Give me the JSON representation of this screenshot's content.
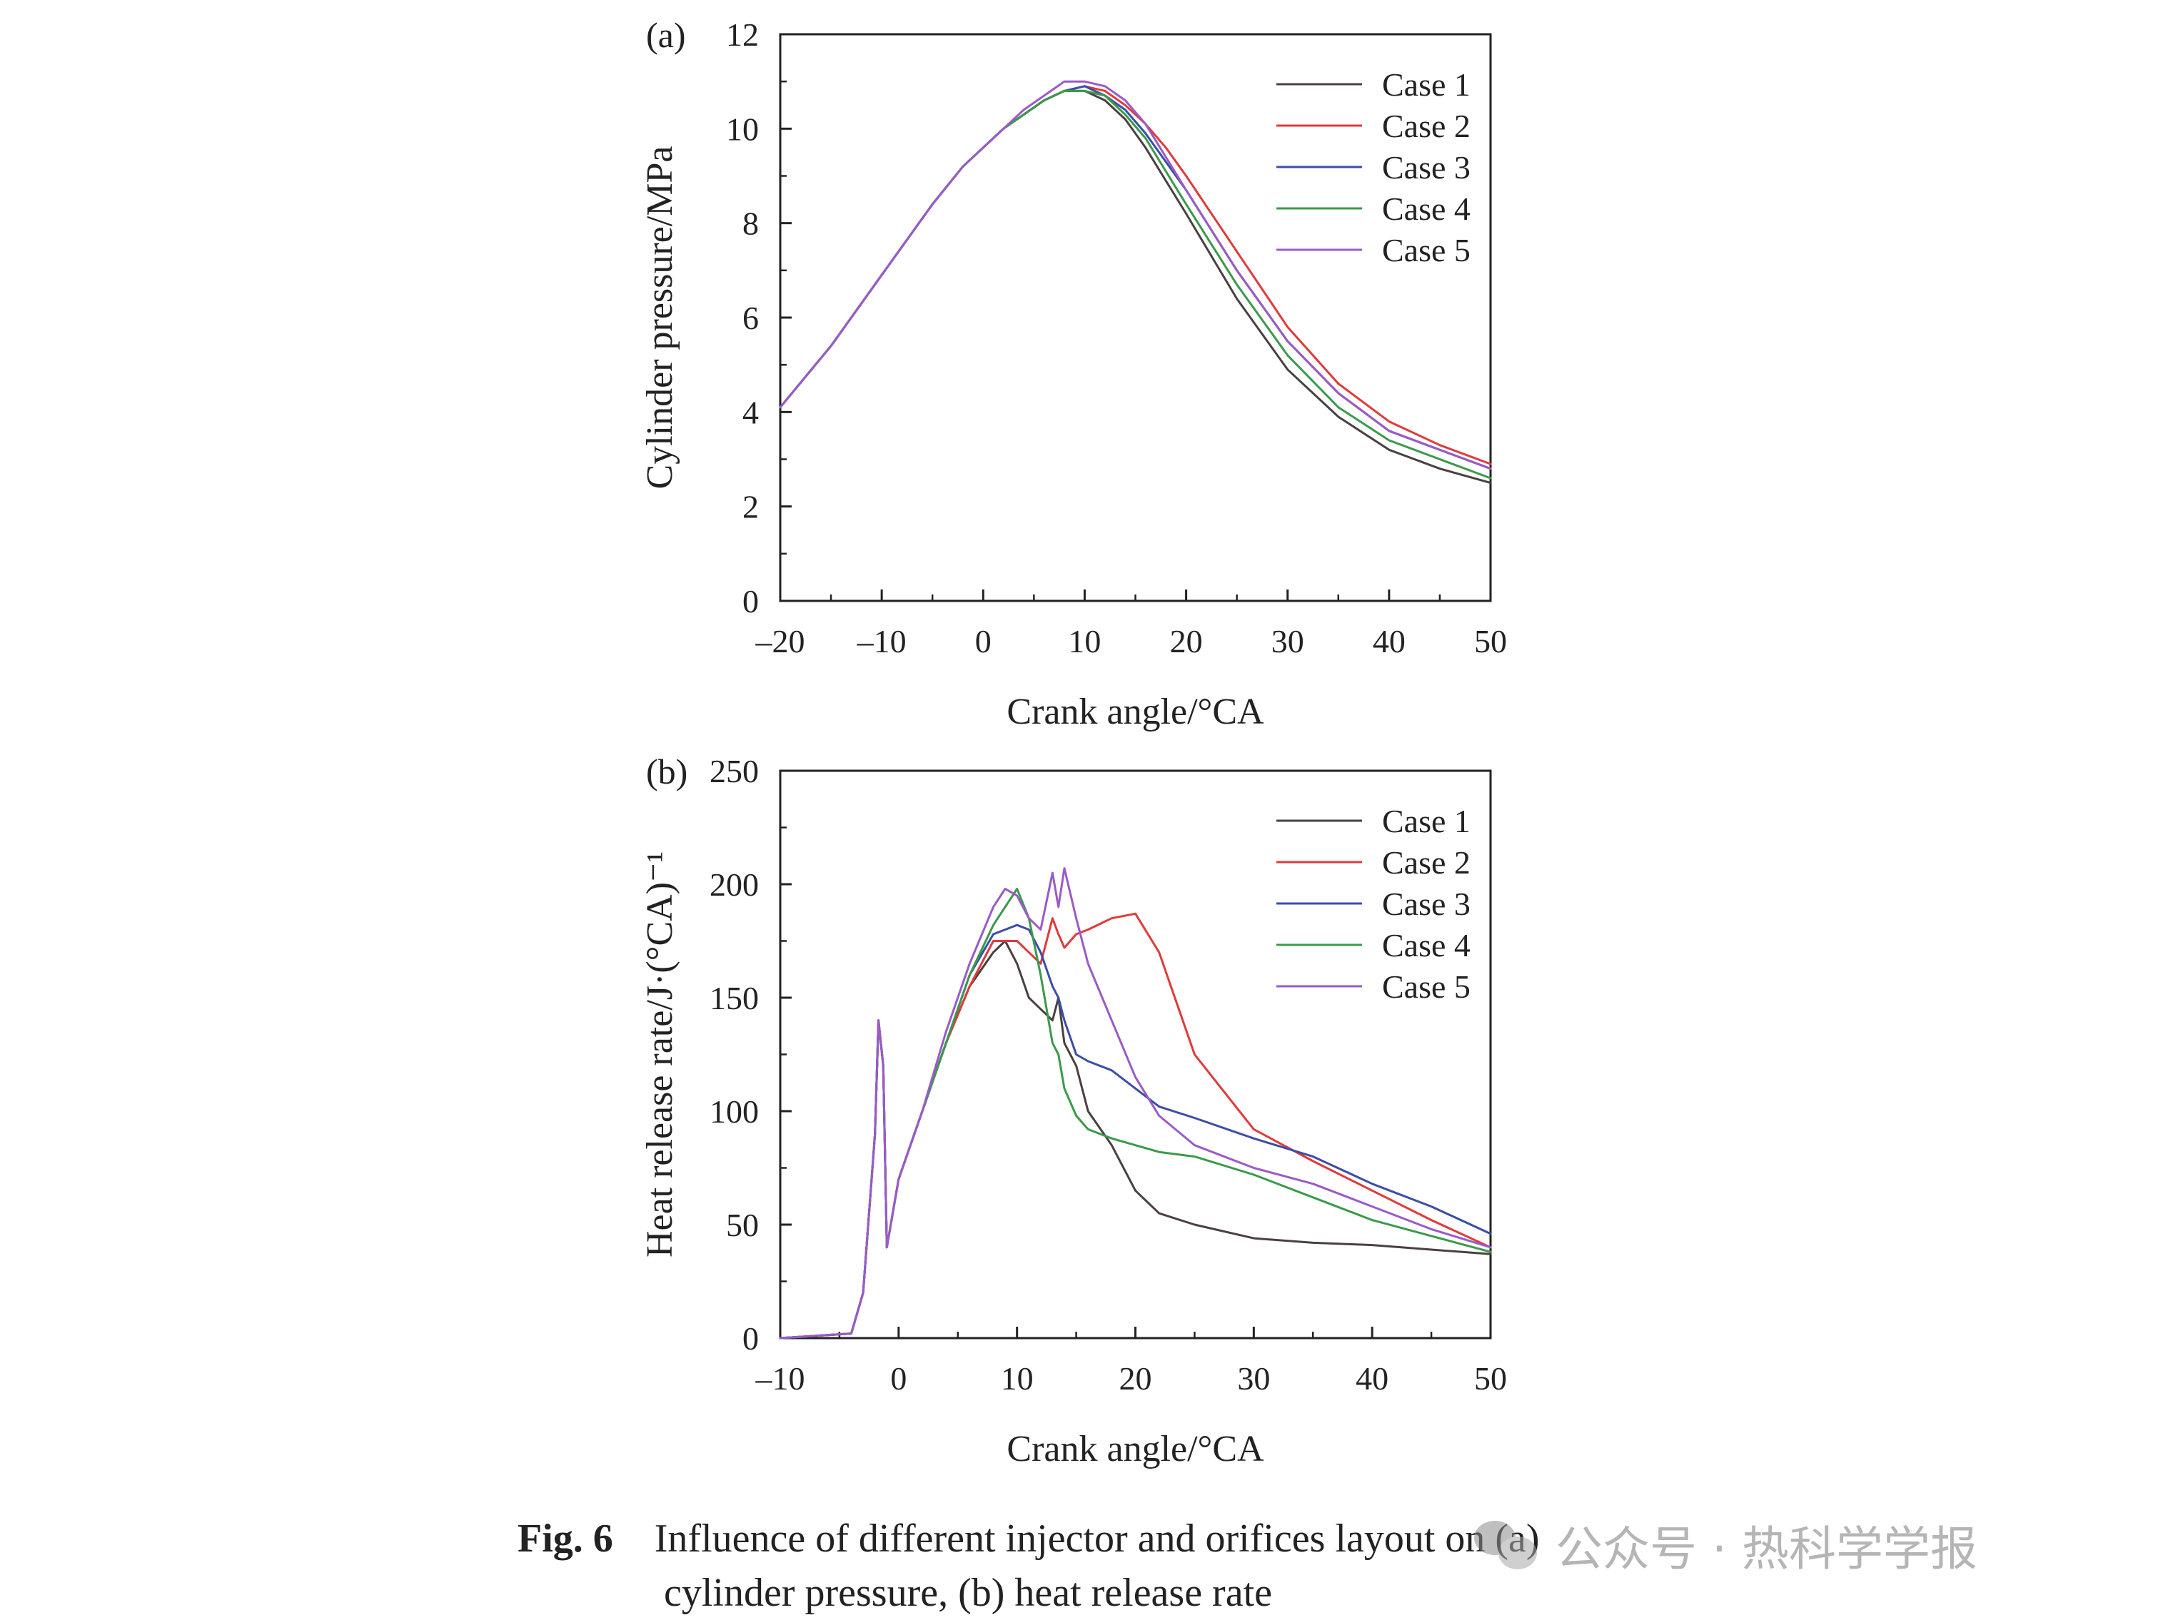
{
  "charts": [
    {
      "panel_label": "(a)",
      "xlabel": "Crank angle/°CA",
      "ylabel": "Cylinder pressure/MPa",
      "xlim": [
        -20,
        50
      ],
      "ylim": [
        0,
        12
      ],
      "xticks": [
        "–20",
        "–10",
        "0",
        "10",
        "20",
        "30",
        "40",
        "50"
      ],
      "yticks": [
        "0",
        "2",
        "4",
        "6",
        "8",
        "10",
        "12"
      ]
    },
    {
      "panel_label": "(b)",
      "xlabel": "Crank angle/°CA",
      "ylabel": "Heat release rate/J·(°CA)⁻¹",
      "xlim": [
        -10,
        50
      ],
      "ylim": [
        0,
        250
      ],
      "xticks": [
        "–10",
        "0",
        "10",
        "20",
        "30",
        "40",
        "50"
      ],
      "yticks": [
        "0",
        "50",
        "100",
        "150",
        "200",
        "250"
      ]
    }
  ],
  "colors": {
    "Case 1": "#4a4040",
    "Case 2": "#e03a3a",
    "Case 3": "#3a4ea8",
    "Case 4": "#3a9a4a",
    "Case 5": "#9a5ac8"
  },
  "chart_data": [
    {
      "type": "line",
      "x": [
        -20,
        -15,
        -10,
        -5,
        -2,
        0,
        2,
        4,
        6,
        8,
        10,
        12,
        14,
        16,
        18,
        20,
        25,
        30,
        35,
        40,
        45,
        50
      ],
      "series": [
        {
          "name": "Case 1",
          "values": [
            4.1,
            5.4,
            6.9,
            8.4,
            9.2,
            9.6,
            10.0,
            10.3,
            10.6,
            10.8,
            10.8,
            10.6,
            10.2,
            9.6,
            8.9,
            8.2,
            6.4,
            4.9,
            3.9,
            3.2,
            2.8,
            2.5
          ]
        },
        {
          "name": "Case 2",
          "values": [
            4.1,
            5.4,
            6.9,
            8.4,
            9.2,
            9.6,
            10.0,
            10.3,
            10.6,
            10.8,
            10.9,
            10.8,
            10.5,
            10.1,
            9.6,
            9.0,
            7.4,
            5.8,
            4.6,
            3.8,
            3.3,
            2.9
          ]
        },
        {
          "name": "Case 3",
          "values": [
            4.1,
            5.4,
            6.9,
            8.4,
            9.2,
            9.6,
            10.0,
            10.3,
            10.6,
            10.8,
            10.9,
            10.7,
            10.4,
            9.9,
            9.3,
            8.7,
            7.0,
            5.5,
            4.4,
            3.6,
            3.2,
            2.8
          ]
        },
        {
          "name": "Case 4",
          "values": [
            4.1,
            5.4,
            6.9,
            8.4,
            9.2,
            9.6,
            10.0,
            10.3,
            10.6,
            10.8,
            10.8,
            10.7,
            10.3,
            9.8,
            9.1,
            8.4,
            6.7,
            5.2,
            4.1,
            3.4,
            3.0,
            2.6
          ]
        },
        {
          "name": "Case 5",
          "values": [
            4.1,
            5.4,
            6.9,
            8.4,
            9.2,
            9.6,
            10.0,
            10.4,
            10.7,
            11.0,
            11.0,
            10.9,
            10.6,
            10.1,
            9.4,
            8.7,
            7.0,
            5.5,
            4.4,
            3.6,
            3.2,
            2.8
          ]
        }
      ],
      "xlim": [
        -20,
        50
      ],
      "ylim": [
        0,
        12
      ]
    },
    {
      "type": "line",
      "x": [
        -10,
        -4,
        -3,
        -2,
        -1.7,
        -1.3,
        -1,
        0,
        2,
        4,
        6,
        8,
        9,
        10,
        11,
        12,
        13,
        13.5,
        14,
        15,
        16,
        18,
        20,
        22,
        25,
        30,
        35,
        40,
        45,
        50
      ],
      "series": [
        {
          "name": "Case 1",
          "values": [
            0,
            2,
            20,
            90,
            140,
            120,
            40,
            70,
            100,
            130,
            155,
            170,
            175,
            165,
            150,
            145,
            140,
            150,
            130,
            120,
            100,
            85,
            65,
            55,
            50,
            44,
            42,
            41,
            39,
            37
          ]
        },
        {
          "name": "Case 2",
          "values": [
            0,
            2,
            20,
            90,
            140,
            120,
            40,
            70,
            100,
            130,
            155,
            175,
            175,
            175,
            170,
            165,
            185,
            178,
            172,
            178,
            180,
            185,
            187,
            170,
            125,
            92,
            78,
            65,
            52,
            40
          ]
        },
        {
          "name": "Case 3",
          "values": [
            0,
            2,
            20,
            90,
            140,
            120,
            40,
            70,
            100,
            130,
            160,
            178,
            180,
            182,
            180,
            170,
            155,
            150,
            140,
            125,
            122,
            118,
            110,
            102,
            97,
            88,
            80,
            68,
            58,
            46
          ]
        },
        {
          "name": "Case 4",
          "values": [
            0,
            2,
            20,
            90,
            140,
            120,
            40,
            70,
            100,
            130,
            160,
            182,
            190,
            198,
            185,
            160,
            130,
            125,
            110,
            98,
            92,
            88,
            85,
            82,
            80,
            72,
            62,
            52,
            45,
            38
          ]
        },
        {
          "name": "Case 5",
          "values": [
            0,
            2,
            20,
            90,
            140,
            120,
            40,
            70,
            100,
            135,
            165,
            190,
            198,
            195,
            185,
            180,
            205,
            190,
            207,
            185,
            165,
            140,
            115,
            98,
            85,
            75,
            68,
            58,
            48,
            40
          ]
        }
      ],
      "xlim": [
        -10,
        50
      ],
      "ylim": [
        0,
        250
      ]
    }
  ],
  "caption": {
    "label": "Fig. 6",
    "line1": "Influence of different injector and orifices layout on (a)",
    "line2": "cylinder pressure, (b) heat release rate"
  },
  "watermark": {
    "text": "公众号 · 热科学学报",
    "icon": "wechat-icon"
  }
}
